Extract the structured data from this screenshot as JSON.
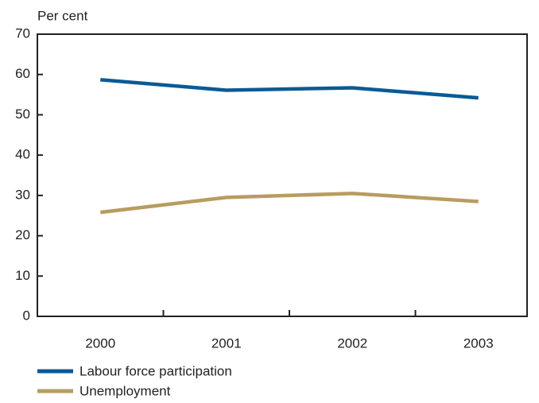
{
  "chart_data": {
    "type": "line",
    "y_label": "Per cent",
    "categories": [
      "2000",
      "2001",
      "2002",
      "2003"
    ],
    "series": [
      {
        "name": "Labour force participation",
        "color": "#0a5a96",
        "values": [
          58.7,
          56.1,
          56.7,
          54.2
        ]
      },
      {
        "name": "Unemployment",
        "color": "#b89c60",
        "values": [
          25.8,
          29.5,
          30.5,
          28.5
        ]
      }
    ],
    "ylim": [
      0,
      70
    ],
    "yticks": [
      0,
      10,
      20,
      30,
      40,
      50,
      60,
      70
    ]
  }
}
